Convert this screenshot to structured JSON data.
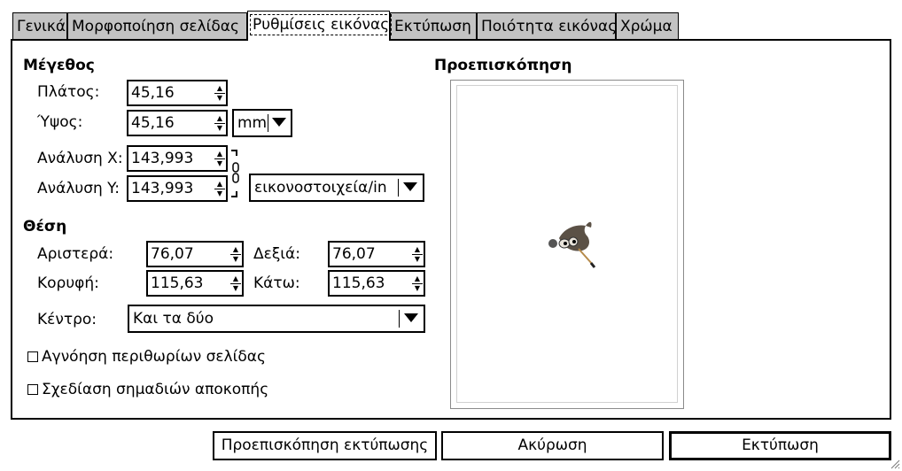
{
  "tabs": [
    {
      "label": "Γενικά"
    },
    {
      "label": "Μορφοποίηση σελίδας"
    },
    {
      "label": "Ρυθμίσεις εικόνας"
    },
    {
      "label": "Εκτύπωση"
    },
    {
      "label": "Ποιότητα εικόνας"
    },
    {
      "label": "Χρώμα"
    }
  ],
  "size": {
    "title": "Μέγεθος",
    "width_label": "Πλάτος:",
    "width_value": "45,16",
    "height_label": "Ύψος:",
    "height_value": "45,16",
    "unit": "mm",
    "resx_label": "Ανάλυση X:",
    "resx_value": "143,993",
    "resy_label": "Ανάλυση Y:",
    "resy_value": "143,993",
    "res_unit": "εικονοστοιχεία/in"
  },
  "position": {
    "title": "Θέση",
    "left_label": "Αριστερά:",
    "left_value": "76,07",
    "right_label": "Δεξιά:",
    "right_value": "76,07",
    "top_label": "Κορυφή:",
    "top_value": "115,63",
    "bottom_label": "Κάτω:",
    "bottom_value": "115,63",
    "center_label": "Κέντρο:",
    "center_value": "Και τα δύο"
  },
  "options": {
    "ignore_margins": "Αγνόηση περιθωρίων σελίδας",
    "ignore_margins_checked": false,
    "crop_marks": "Σχεδίαση σημαδιών αποκοπής",
    "crop_marks_checked": false
  },
  "preview": {
    "title": "Προεπισκόπηση"
  },
  "buttons": {
    "print_preview": "Προεπισκόπηση εκτύπωσης",
    "cancel": "Ακύρωση",
    "print": "Εκτύπωση"
  }
}
